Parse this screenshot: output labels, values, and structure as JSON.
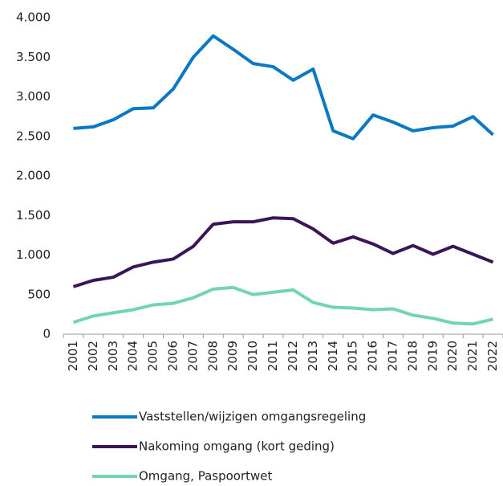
{
  "chart_data": {
    "type": "line",
    "categories": [
      "2001",
      "2002",
      "2003",
      "2004",
      "2005",
      "2006",
      "2007",
      "2008",
      "2009",
      "2010",
      "2011",
      "2012",
      "2013",
      "2014",
      "2015",
      "2016",
      "2017",
      "2018",
      "2019",
      "2020",
      "2021",
      "2022"
    ],
    "series": [
      {
        "name": "Vaststellen/wijzigen omgangsregeling",
        "color": "#0a78c2",
        "values": [
          2600,
          2620,
          2710,
          2850,
          2860,
          3100,
          3500,
          3770,
          3600,
          3420,
          3380,
          3210,
          3350,
          2570,
          2470,
          2770,
          2680,
          2570,
          2610,
          2630,
          2750,
          2520
        ]
      },
      {
        "name": "Nakoming omgang (kort geding)",
        "color": "#3a1659",
        "values": [
          600,
          680,
          720,
          850,
          910,
          950,
          1110,
          1390,
          1420,
          1420,
          1470,
          1460,
          1330,
          1150,
          1230,
          1140,
          1020,
          1120,
          1010,
          1110,
          1010,
          910
        ]
      },
      {
        "name": "Omgang, Paspoortwet",
        "color": "#72d4b4",
        "values": [
          150,
          230,
          270,
          310,
          370,
          390,
          460,
          570,
          590,
          500,
          530,
          560,
          400,
          340,
          330,
          310,
          320,
          240,
          200,
          140,
          130,
          190
        ]
      }
    ],
    "ylim": [
      0,
      4000
    ],
    "yticks": [
      0,
      500,
      {
        "value": 1000,
        "label": "1.000"
      },
      {
        "value": 1500,
        "label": "1.500"
      },
      {
        "value": 2000,
        "label": "2.000"
      },
      {
        "value": 2500,
        "label": "2.500"
      },
      {
        "value": 3000,
        "label": "3.000"
      },
      {
        "value": 3500,
        "label": "3.500"
      },
      {
        "value": 4000,
        "label": "4.000"
      }
    ],
    "grid": false,
    "legend": "bottom"
  }
}
